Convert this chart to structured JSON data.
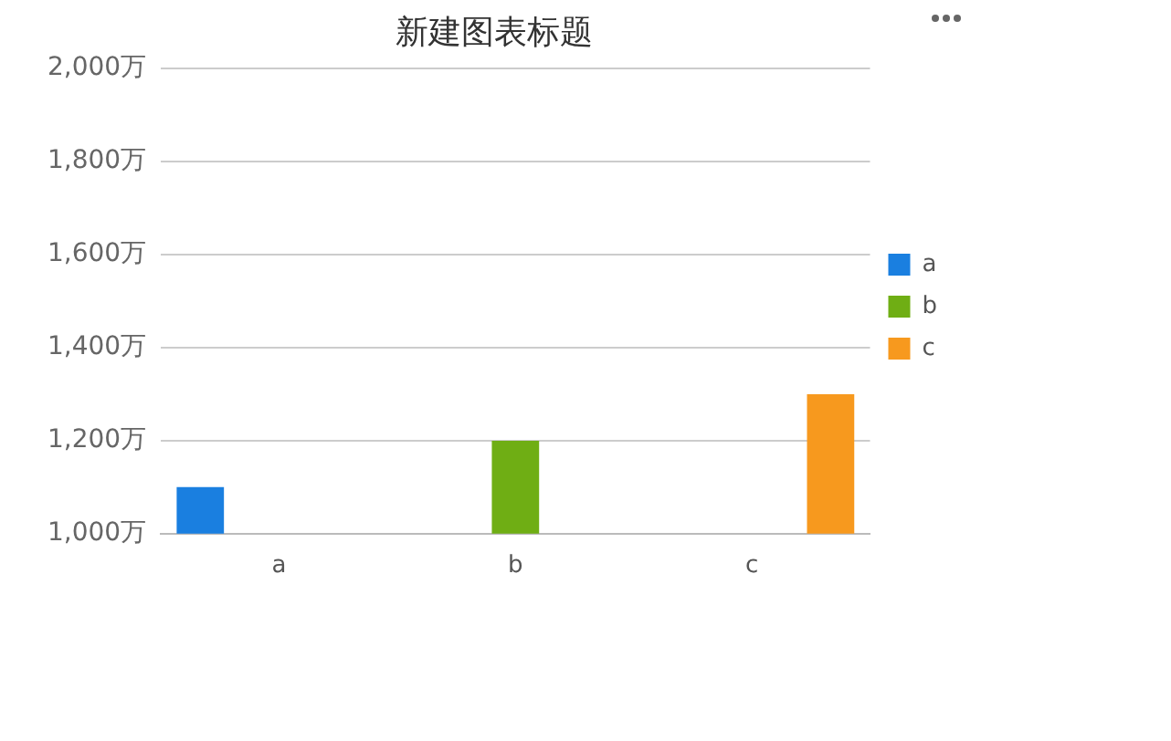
{
  "chart_data": {
    "type": "bar",
    "title": "新建图表标题",
    "categories": [
      "a",
      "b",
      "c"
    ],
    "series": [
      {
        "name": "a",
        "color": "#1a7fe0",
        "values": [
          1100,
          null,
          null
        ]
      },
      {
        "name": "b",
        "color": "#6fae14",
        "values": [
          null,
          1200,
          null
        ]
      },
      {
        "name": "c",
        "color": "#f7991e",
        "values": [
          null,
          null,
          1300
        ]
      }
    ],
    "ylim": [
      1000,
      2000
    ],
    "yticks": [
      {
        "value": 1000,
        "label": "1,000万"
      },
      {
        "value": 1200,
        "label": "1,200万"
      },
      {
        "value": 1400,
        "label": "1,400万"
      },
      {
        "value": 1600,
        "label": "1,600万"
      },
      {
        "value": 1800,
        "label": "1,800万"
      },
      {
        "value": 2000,
        "label": "2,000万"
      }
    ],
    "grid": "y",
    "legend": "right"
  }
}
